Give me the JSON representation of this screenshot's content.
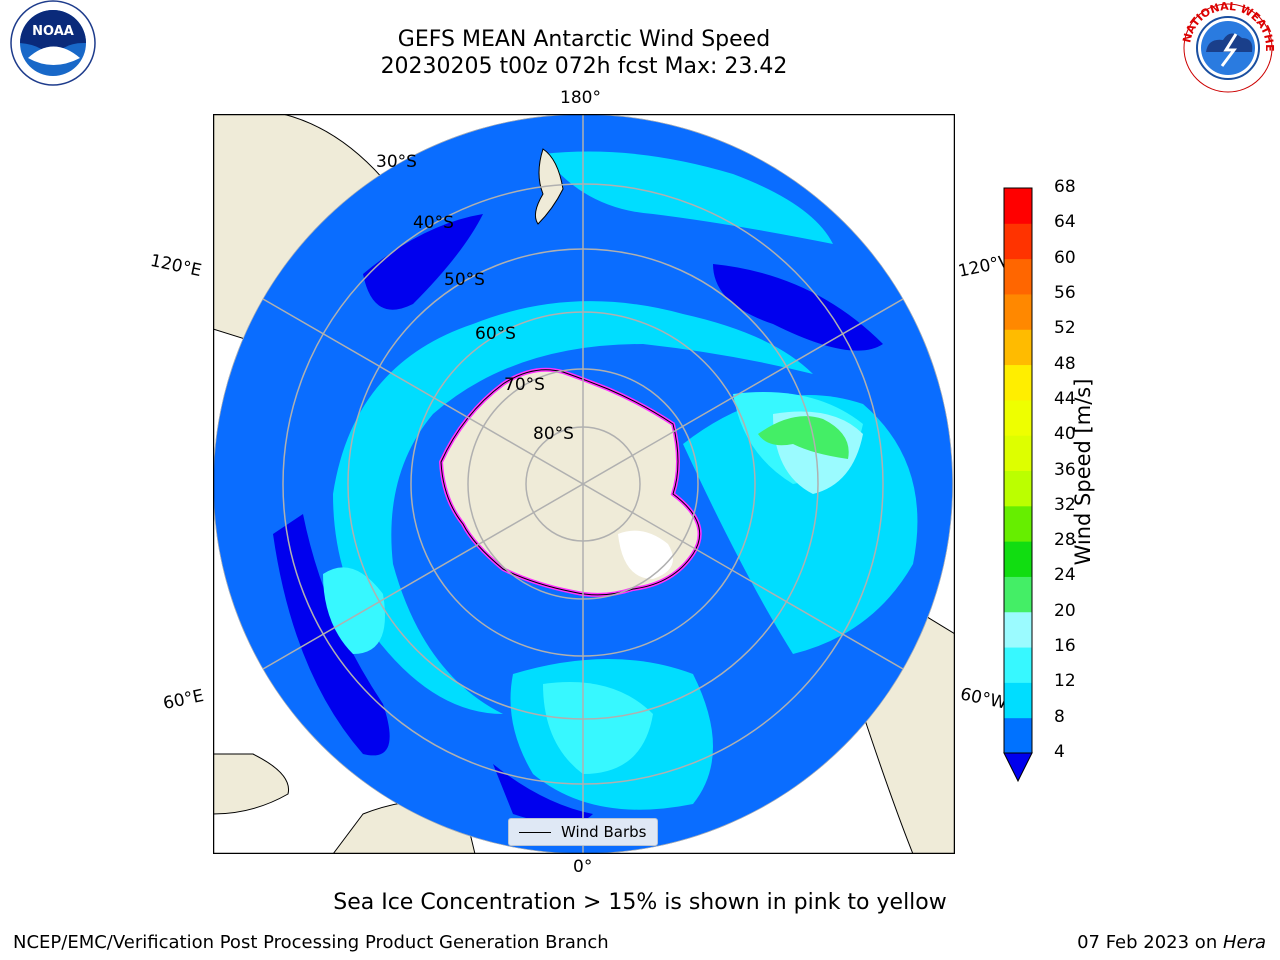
{
  "title": {
    "line1": "GEFS MEAN Antarctic Wind Speed",
    "line2": "20230205 t00z 072h fcst   Max: 23.42"
  },
  "map": {
    "lon_labels": {
      "top": "180°",
      "bottom": "0°",
      "left_upper": "120°E",
      "left_lower": "60°E",
      "right_upper": "120°W",
      "right_lower": "60°W"
    },
    "lat_labels": [
      "30°S",
      "40°S",
      "50°S",
      "60°S",
      "70°S",
      "80°S"
    ],
    "legend": "Wind Barbs",
    "colors": {
      "land": "#efebd8",
      "ocean_calm": "#0a6dff",
      "sea_ice": "#ff33ff"
    }
  },
  "colorbar": {
    "label": "Wind Speed [m/s]",
    "ticks": [
      "4",
      "8",
      "12",
      "16",
      "20",
      "24",
      "28",
      "32",
      "36",
      "40",
      "44",
      "48",
      "52",
      "56",
      "60",
      "64",
      "68"
    ],
    "colors": [
      "#0000ee",
      "#0072ff",
      "#00ddff",
      "#37f8ff",
      "#9bfbff",
      "#44ee66",
      "#11dd11",
      "#66ee00",
      "#bbff00",
      "#ddff00",
      "#eeff00",
      "#ffee00",
      "#ffbb00",
      "#ff8800",
      "#ff6600",
      "#ff3300",
      "#ff0000"
    ]
  },
  "footer": {
    "caption": "Sea Ice Concentration > 15% is shown in pink to yellow",
    "left": "NCEP/EMC/Verification Post Processing Product Generation Branch",
    "date": "07 Feb 2023 on ",
    "machine": "Hera"
  },
  "logos": {
    "left": "NOAA",
    "right": "NATIONAL WEATHER SERVICE"
  }
}
